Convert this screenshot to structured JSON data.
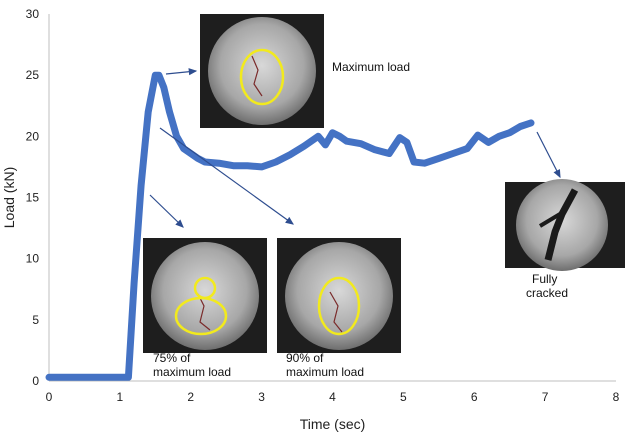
{
  "chart_data": {
    "type": "line",
    "title": "",
    "xlabel": "Time (sec)",
    "ylabel": "Load (kN)",
    "xlim": [
      0,
      8
    ],
    "ylim": [
      0,
      30
    ],
    "xticks": [
      0,
      1,
      2,
      3,
      4,
      5,
      6,
      7,
      8
    ],
    "yticks": [
      0,
      5,
      10,
      15,
      20,
      25,
      30
    ],
    "grid": false,
    "legend": "none",
    "series": [
      {
        "color": "#4472C4",
        "x": [
          0,
          0.5,
          1.0,
          1.12,
          1.2,
          1.3,
          1.4,
          1.5,
          1.55,
          1.62,
          1.7,
          1.8,
          1.9,
          2.0,
          2.1,
          2.2,
          2.4,
          2.6,
          2.8,
          3.0,
          3.2,
          3.4,
          3.6,
          3.8,
          3.9,
          4.0,
          4.1,
          4.2,
          4.4,
          4.6,
          4.8,
          4.95,
          5.05,
          5.15,
          5.3,
          5.5,
          5.7,
          5.9,
          6.05,
          6.2,
          6.35,
          6.5,
          6.65,
          6.8
        ],
        "y": [
          0.3,
          0.3,
          0.3,
          0.3,
          8,
          16,
          22,
          25,
          25,
          24,
          22,
          20,
          19,
          18.6,
          18.2,
          17.9,
          17.8,
          17.6,
          17.6,
          17.5,
          17.9,
          18.5,
          19.2,
          20.0,
          19.3,
          20.3,
          20.0,
          19.6,
          19.4,
          18.9,
          18.6,
          19.9,
          19.5,
          17.9,
          17.8,
          18.2,
          18.6,
          19.0,
          20.1,
          19.5,
          20.0,
          20.3,
          20.8,
          21.1
        ]
      }
    ],
    "annotations": [
      {
        "name": "maximum-load",
        "text": [
          "Maximum load"
        ]
      },
      {
        "name": "75-percent",
        "text": [
          "75% of",
          "maximum load"
        ]
      },
      {
        "name": "90-percent",
        "text": [
          "90% of",
          "maximum load"
        ]
      },
      {
        "name": "fully-cracked",
        "text": [
          "Fully",
          "cracked"
        ]
      }
    ]
  }
}
